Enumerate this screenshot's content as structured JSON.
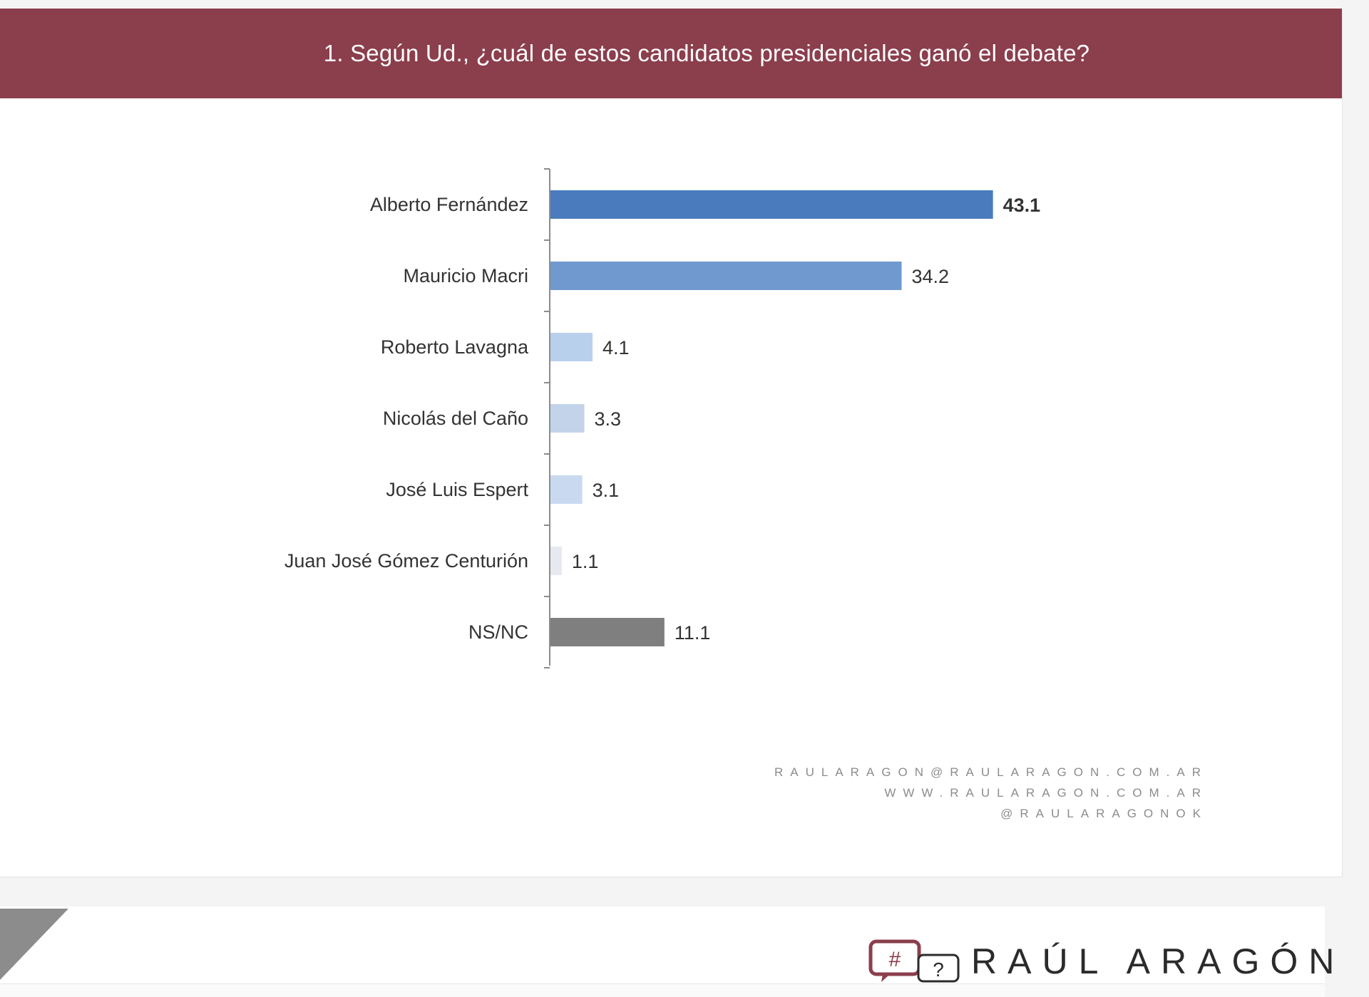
{
  "header": {
    "title": "1. Según Ud., ¿cuál de estos candidatos presidenciales ganó el debate?"
  },
  "chart_data": {
    "type": "bar",
    "orientation": "horizontal",
    "title": "1. Según Ud., ¿cuál de estos candidatos presidenciales ganó el debate?",
    "categories": [
      "Alberto Fernández",
      "Mauricio Macri",
      "Roberto Lavagna",
      "Nicolás del Caño",
      "José Luis Espert",
      "Juan José Gómez Centurión",
      "NS/NC"
    ],
    "values": [
      43.1,
      34.2,
      4.1,
      3.3,
      3.1,
      1.1,
      11.1
    ],
    "value_labels": [
      "43.1",
      "34.2",
      "4.1",
      "3.3",
      "3.1",
      "1.1",
      "11.1"
    ],
    "bar_colors": [
      "#4a7bbd",
      "#6f99cf",
      "#b9d0ec",
      "#c3d3ea",
      "#c9daf0",
      "#e6e9ef",
      "#7f7f7f"
    ],
    "grid": false,
    "legend": "none"
  },
  "contacts": {
    "email": "RAULARAGON@RAULARAGON.COM.AR",
    "website": "WWW.RAULARAGON.COM.AR",
    "handle": "@RAULARAGONOK"
  },
  "brand": {
    "name": "RAÚL ARAGÓN",
    "logo_icon": "hashtag-question-speech-bubbles-icon",
    "accent_color": "#8b3e4c"
  }
}
